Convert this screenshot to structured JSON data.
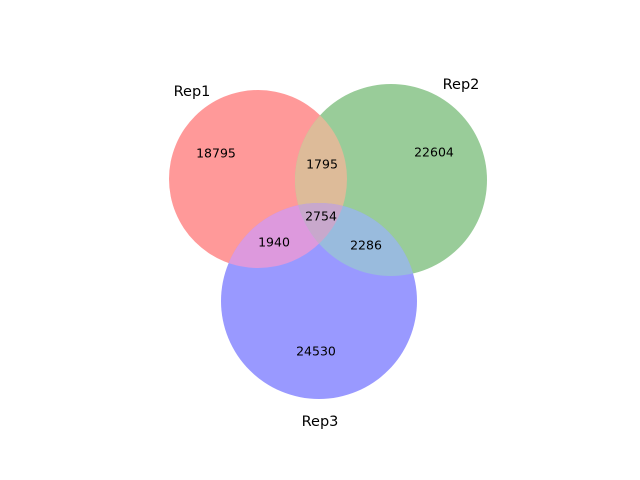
{
  "chart_data": {
    "type": "venn",
    "sets": [
      {
        "id": "rep1",
        "name": "Rep1",
        "color": "#ff9999",
        "opacity": 0.4
      },
      {
        "id": "rep2",
        "name": "Rep2",
        "color": "#99cc99",
        "opacity": 0.4
      },
      {
        "id": "rep3",
        "name": "Rep3",
        "color": "#9999ff",
        "opacity": 0.4
      }
    ],
    "regions": [
      {
        "sets": [
          "rep1"
        ],
        "value": "18795"
      },
      {
        "sets": [
          "rep2"
        ],
        "value": "22604"
      },
      {
        "sets": [
          "rep3"
        ],
        "value": "24530"
      },
      {
        "sets": [
          "rep1",
          "rep2"
        ],
        "value": "1795"
      },
      {
        "sets": [
          "rep1",
          "rep3"
        ],
        "value": "1940"
      },
      {
        "sets": [
          "rep2",
          "rep3"
        ],
        "value": "2286"
      },
      {
        "sets": [
          "rep1",
          "rep2",
          "rep3"
        ],
        "value": "2754"
      }
    ]
  }
}
